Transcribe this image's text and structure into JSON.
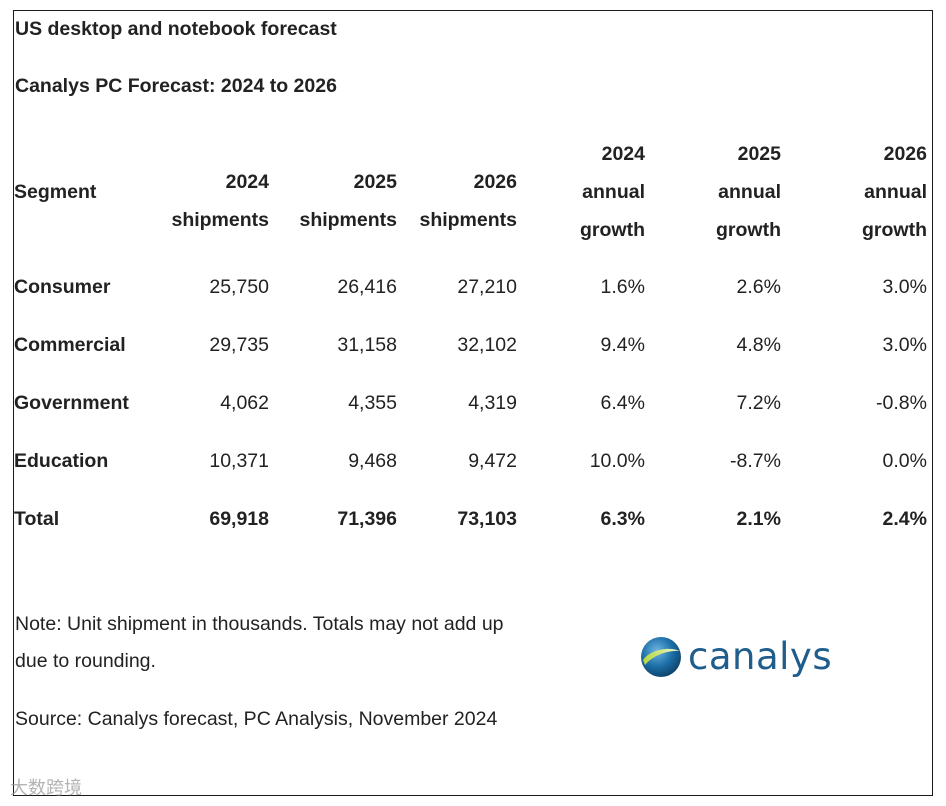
{
  "title": "US desktop and notebook forecast",
  "subtitle": "Canalys PC Forecast: 2024 to 2026",
  "table": {
    "segment_header": "Segment",
    "shipment_headers": [
      {
        "year": "2024",
        "label": "shipments"
      },
      {
        "year": "2025",
        "label": "shipments"
      },
      {
        "year": "2026",
        "label": "shipments"
      }
    ],
    "growth_headers": [
      {
        "year": "2024",
        "line2": "annual",
        "line3": "growth"
      },
      {
        "year": "2025",
        "line2": "annual",
        "line3": "growth"
      },
      {
        "year": "2026",
        "line2": "annual",
        "line3": "growth"
      }
    ],
    "rows": [
      {
        "segment": "Consumer",
        "s2024": "25,750",
        "s2025": "26,416",
        "s2026": "27,210",
        "g2024": "1.6%",
        "g2025": "2.6%",
        "g2026": "3.0%"
      },
      {
        "segment": "Commercial",
        "s2024": "29,735",
        "s2025": "31,158",
        "s2026": "32,102",
        "g2024": "9.4%",
        "g2025": "4.8%",
        "g2026": "3.0%"
      },
      {
        "segment": "Government",
        "s2024": "4,062",
        "s2025": "4,355",
        "s2026": "4,319",
        "g2024": "6.4%",
        "g2025": "7.2%",
        "g2026": "-0.8%"
      },
      {
        "segment": "Education",
        "s2024": "10,371",
        "s2025": "9,468",
        "s2026": "9,472",
        "g2024": "10.0%",
        "g2025": "-8.7%",
        "g2026": "0.0%"
      }
    ],
    "total": {
      "segment": "Total",
      "s2024": "69,918",
      "s2025": "71,396",
      "s2026": "73,103",
      "g2024": "6.3%",
      "g2025": "2.1%",
      "g2026": "2.4%"
    }
  },
  "note": "Note: Unit shipment in thousands. Totals may not add up due to rounding.",
  "source": "Source: Canalys forecast, PC Analysis, November 2024",
  "logo": {
    "text": "canalys",
    "icon": "canalys-globe-icon",
    "color": "#1f5e8c"
  },
  "watermark": "大数跨境"
}
